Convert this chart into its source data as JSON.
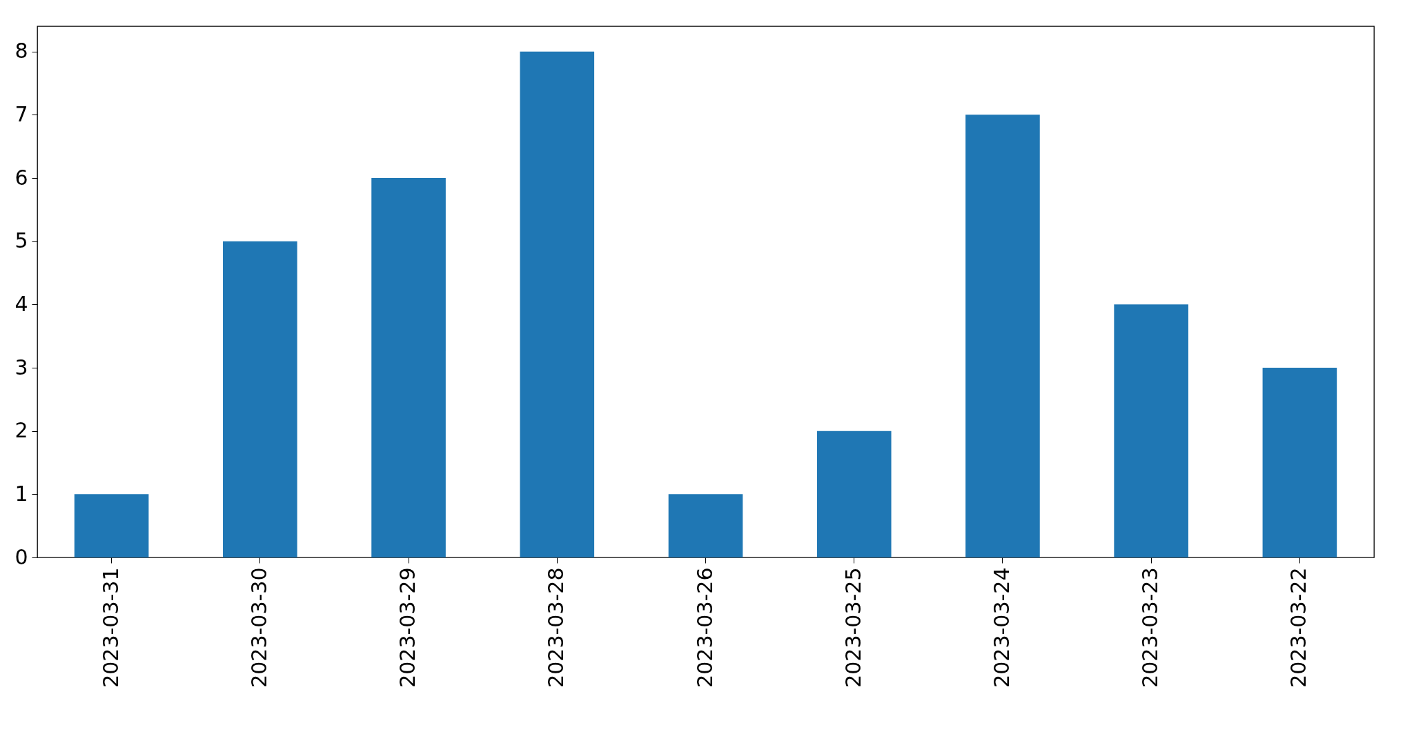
{
  "chart_data": {
    "type": "bar",
    "categories": [
      "2023-03-31",
      "2023-03-30",
      "2023-03-29",
      "2023-03-28",
      "2023-03-26",
      "2023-03-25",
      "2023-03-24",
      "2023-03-23",
      "2023-03-22"
    ],
    "values": [
      1,
      5,
      6,
      8,
      1,
      2,
      7,
      4,
      3
    ],
    "color": "#1f77b4",
    "ylim": [
      0,
      8.4
    ],
    "yticks": [
      0,
      1,
      2,
      3,
      4,
      5,
      6,
      7,
      8
    ],
    "grid": false
  }
}
